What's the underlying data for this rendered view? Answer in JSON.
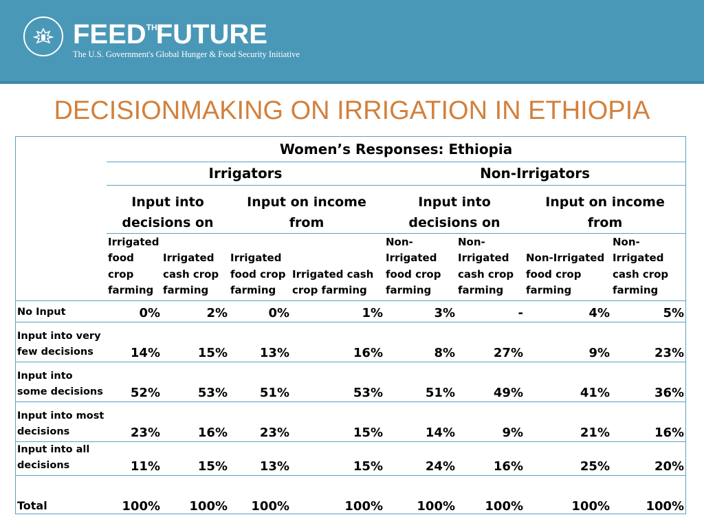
{
  "header": {
    "brand_left": "FEED",
    "brand_the": "THE",
    "brand_right": "FUTURE",
    "tagline": "The U.S. Government's Global Hunger & Food Security Initiative",
    "seal_icon": "us-seal-icon",
    "band_color": "#4a98b8"
  },
  "slide": {
    "title": "DECISIONMAKING ON IRRIGATION IN ETHIOPIA",
    "title_color": "#d2803c"
  },
  "table": {
    "title": "Women’s Responses: Ethiopia",
    "groups": [
      "Irrigators",
      "Non-Irrigators"
    ],
    "subgroups": [
      "Input into decisions on",
      "Input on income from",
      "Input into decisions on",
      "Input on income from"
    ],
    "columns": [
      "Irrigated food crop farming",
      "Irrigated cash crop farming",
      "Irrigated food crop farming",
      "Irrigated cash crop farming",
      "Non-Irrigated food crop farming",
      "Non-Irrigated cash crop farming",
      "Non-Irrigated food crop farming",
      "Non-Irrigated cash crop farming"
    ],
    "rows": [
      {
        "label": "No Input",
        "values": [
          "0%",
          "2%",
          "0%",
          "1%",
          "3%",
          "-",
          "4%",
          "5%"
        ]
      },
      {
        "label": "Input into very few decisions",
        "values": [
          "14%",
          "15%",
          "13%",
          "16%",
          "8%",
          "27%",
          "9%",
          "23%"
        ]
      },
      {
        "label": "Input into some decisions",
        "values": [
          "52%",
          "53%",
          "51%",
          "53%",
          "51%",
          "49%",
          "41%",
          "36%"
        ]
      },
      {
        "label": "Input into most decisions",
        "values": [
          "23%",
          "16%",
          "23%",
          "15%",
          "14%",
          "9%",
          "21%",
          "16%"
        ]
      },
      {
        "label": "Input into all decisions",
        "values": [
          "11%",
          "15%",
          "13%",
          "15%",
          "24%",
          "16%",
          "25%",
          "20%"
        ]
      },
      {
        "label": "Total",
        "values": [
          "100%",
          "100%",
          "100%",
          "100%",
          "100%",
          "100%",
          "100%",
          "100%"
        ]
      }
    ]
  }
}
